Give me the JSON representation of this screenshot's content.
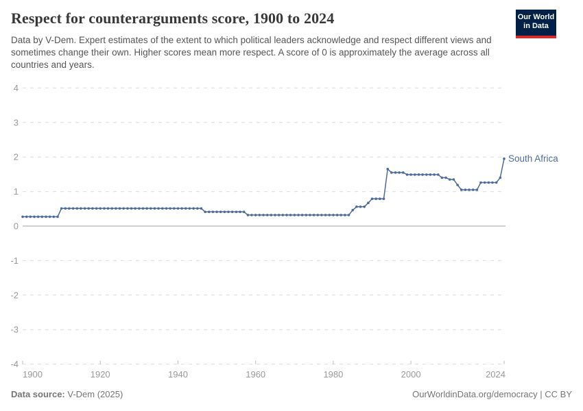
{
  "header": {
    "title": "Respect for counterarguments score, 1900 to 2024",
    "subtitle": "Data by V-Dem. Expert estimates of the extent to which political leaders acknowledge and respect different views and sometimes change their own. Higher scores mean more respect. A score of 0 is approximately the average across all countries and years.",
    "logo": {
      "line1": "Our World",
      "line2": "in Data",
      "bg_color": "#002147",
      "accent_color": "#d42b2b"
    }
  },
  "footer": {
    "source_label": "Data source:",
    "source_value": " V-Dem (2025)",
    "credit": "OurWorldinData.org/democracy | CC BY"
  },
  "chart_data": {
    "type": "line",
    "title": "Respect for counterarguments score, 1900 to 2024",
    "entity": "South Africa",
    "line_color": "#4c6a9c",
    "axis_text_color": "#999999",
    "grid": "horizontal dashed gridlines, solid line at 0",
    "legend_position": "end-of-line label",
    "x_start": 1900,
    "x_end": 2024,
    "x_ticks": [
      1900,
      1920,
      1940,
      1960,
      1980,
      2000,
      2024
    ],
    "y_ticks": [
      -4,
      -3,
      -2,
      -1,
      0,
      1,
      2,
      3,
      4
    ],
    "ylim": [
      -4,
      4
    ],
    "values": [
      0.27,
      0.27,
      0.27,
      0.27,
      0.27,
      0.27,
      0.27,
      0.27,
      0.27,
      0.27,
      0.51,
      0.51,
      0.51,
      0.51,
      0.51,
      0.51,
      0.51,
      0.51,
      0.51,
      0.51,
      0.51,
      0.51,
      0.51,
      0.51,
      0.51,
      0.51,
      0.51,
      0.51,
      0.51,
      0.51,
      0.51,
      0.51,
      0.51,
      0.51,
      0.51,
      0.51,
      0.51,
      0.51,
      0.51,
      0.51,
      0.51,
      0.51,
      0.51,
      0.51,
      0.51,
      0.51,
      0.51,
      0.41,
      0.41,
      0.41,
      0.41,
      0.41,
      0.41,
      0.41,
      0.41,
      0.41,
      0.41,
      0.41,
      0.32,
      0.32,
      0.32,
      0.32,
      0.32,
      0.32,
      0.32,
      0.32,
      0.32,
      0.32,
      0.32,
      0.32,
      0.32,
      0.32,
      0.32,
      0.32,
      0.32,
      0.32,
      0.32,
      0.32,
      0.32,
      0.32,
      0.32,
      0.32,
      0.32,
      0.32,
      0.32,
      0.46,
      0.56,
      0.56,
      0.56,
      0.67,
      0.79,
      0.79,
      0.79,
      0.79,
      1.65,
      1.55,
      1.55,
      1.55,
      1.55,
      1.49,
      1.49,
      1.49,
      1.49,
      1.49,
      1.49,
      1.49,
      1.49,
      1.49,
      1.4,
      1.4,
      1.35,
      1.35,
      1.19,
      1.05,
      1.05,
      1.05,
      1.05,
      1.05,
      1.26,
      1.26,
      1.26,
      1.26,
      1.26,
      1.4,
      1.95
    ]
  }
}
